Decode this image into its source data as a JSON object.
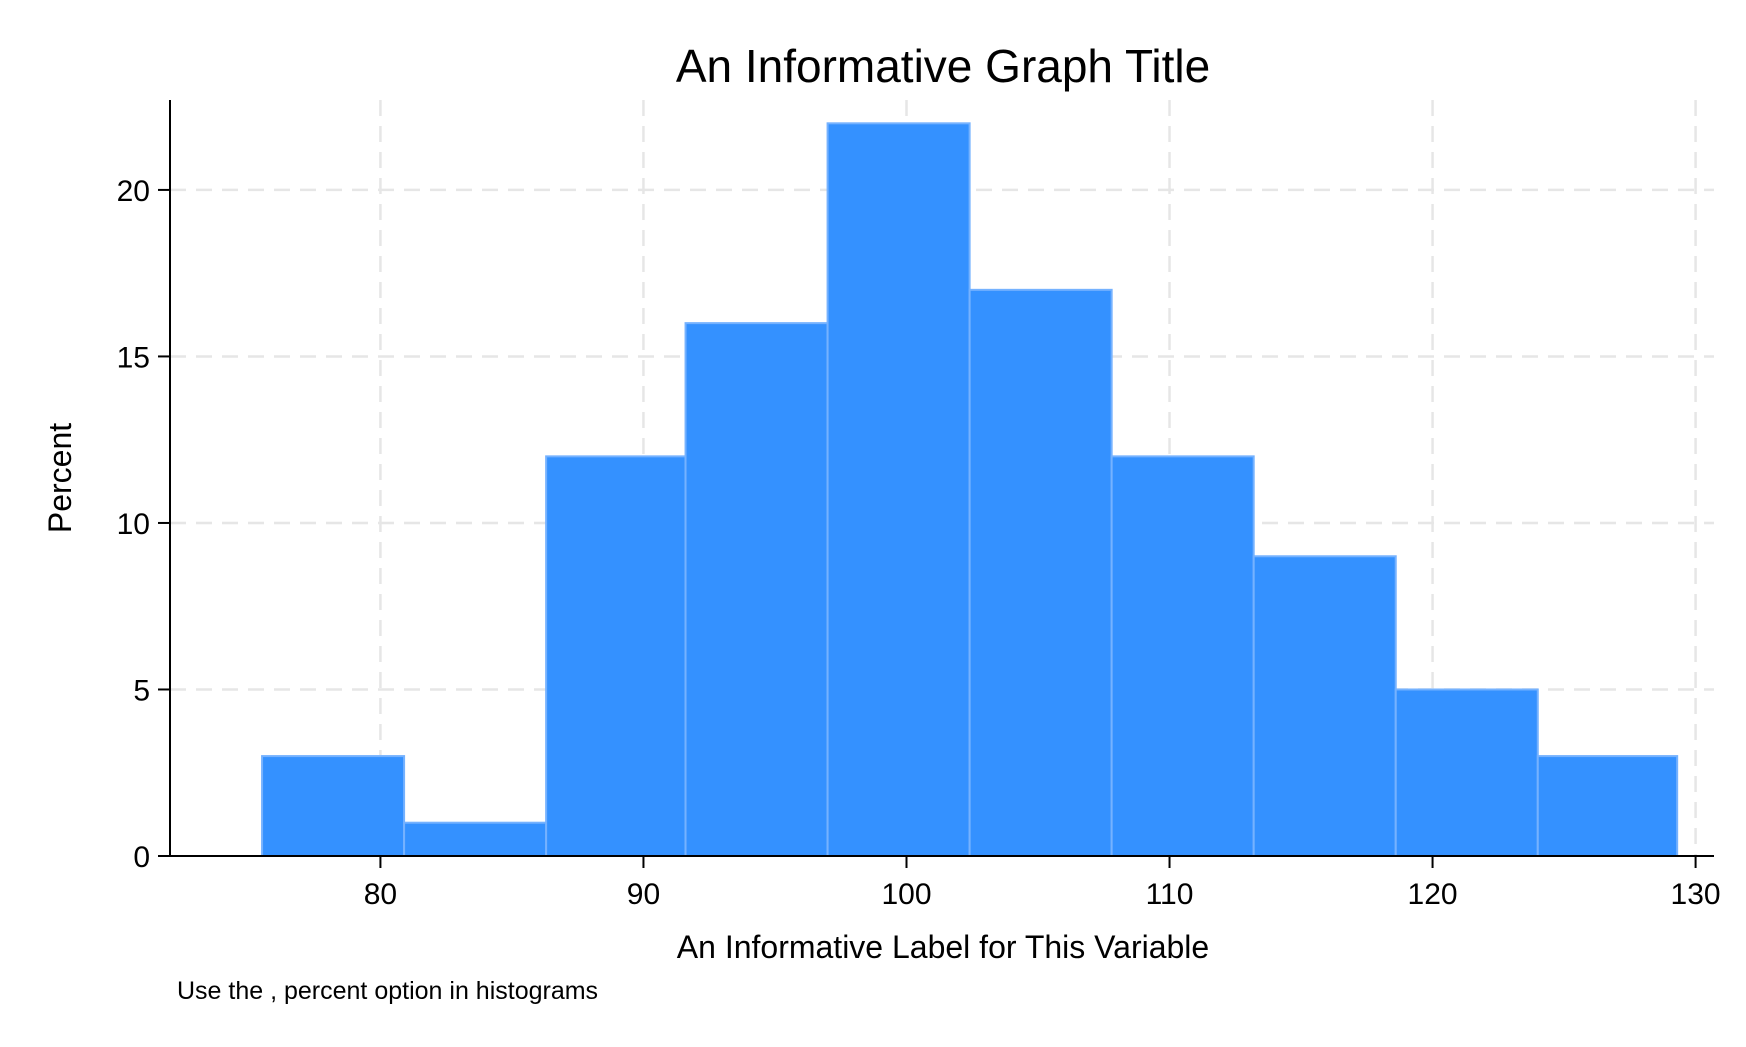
{
  "chart_data": {
    "type": "bar",
    "title": "An Informative Graph Title",
    "xlabel": "An Informative Label for This Variable",
    "ylabel": "Percent",
    "note": "Use the , percent option in histograms",
    "bins": [
      {
        "x0": 75.5,
        "x1": 80.9,
        "value": 3
      },
      {
        "x0": 80.9,
        "x1": 86.3,
        "value": 1
      },
      {
        "x0": 86.3,
        "x1": 91.6,
        "value": 12
      },
      {
        "x0": 91.6,
        "x1": 97.0,
        "value": 16
      },
      {
        "x0": 97.0,
        "x1": 102.4,
        "value": 22
      },
      {
        "x0": 102.4,
        "x1": 107.8,
        "value": 17
      },
      {
        "x0": 107.8,
        "x1": 113.2,
        "value": 12
      },
      {
        "x0": 113.2,
        "x1": 118.6,
        "value": 9
      },
      {
        "x0": 118.6,
        "x1": 124.0,
        "value": 5
      },
      {
        "x0": 124.0,
        "x1": 129.3,
        "value": 3
      }
    ],
    "xticks": [
      80,
      90,
      100,
      110,
      120,
      130
    ],
    "yticks": [
      0,
      5,
      10,
      15,
      20
    ],
    "xlim": [
      72,
      130.7
    ],
    "ylim": [
      0,
      22.7
    ],
    "grid": true,
    "bar_color": "#3491ff"
  }
}
